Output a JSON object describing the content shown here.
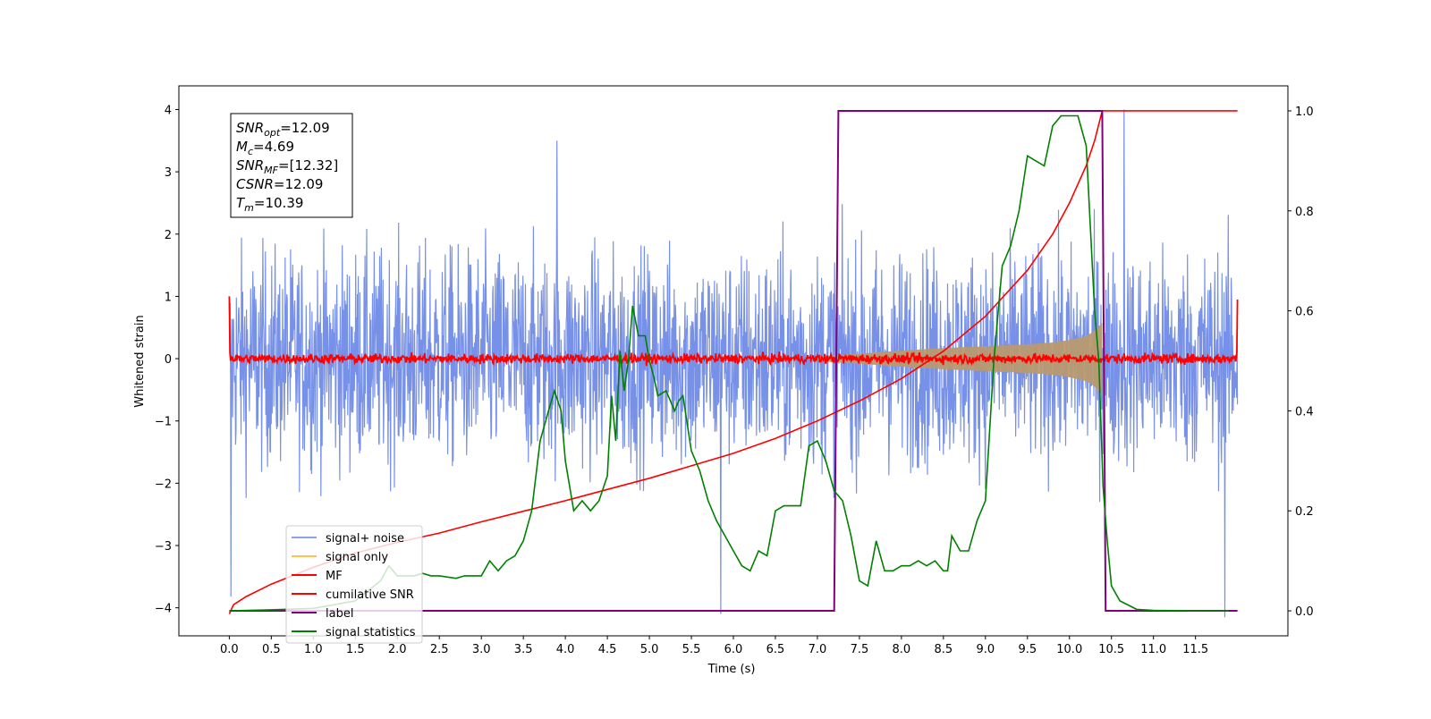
{
  "chart_data": {
    "type": "line",
    "xlabel": "Time (s)",
    "ylabel": "Whitened strain",
    "ylabel_right": "",
    "xlim": [
      -0.6,
      12.6
    ],
    "ylim": [
      -4.45,
      4.38
    ],
    "ylim_right": [
      -0.05,
      1.05
    ],
    "x_ticks": [
      0.0,
      0.5,
      1.0,
      1.5,
      2.0,
      2.5,
      3.0,
      3.5,
      4.0,
      4.5,
      5.0,
      5.5,
      6.0,
      6.5,
      7.0,
      7.5,
      8.0,
      8.5,
      9.0,
      9.5,
      10.0,
      10.5,
      11.0,
      11.5
    ],
    "x_tick_labels": [
      "0.0",
      "0.5",
      "1.0",
      "1.5",
      "2.0",
      "2.5",
      "3.0",
      "3.5",
      "4.0",
      "4.5",
      "5.0",
      "5.5",
      "6.0",
      "6.5",
      "7.0",
      "7.5",
      "8.0",
      "8.5",
      "9.0",
      "9.5",
      "10.0",
      "10.5",
      "11.0",
      "11.5"
    ],
    "y_ticks": [
      4,
      3,
      2,
      1,
      0,
      -1,
      -2,
      -3,
      -4
    ],
    "y_tick_labels": [
      "4",
      "3",
      "2",
      "1",
      "0",
      "−1",
      "−2",
      "−3",
      "−4"
    ],
    "y_ticks_right": [
      1.0,
      0.8,
      0.6,
      0.4,
      0.2,
      0.0
    ],
    "y_tick_labels_right": [
      "1.0",
      "0.8",
      "0.6",
      "0.4",
      "0.2",
      "0.0"
    ],
    "grid": false,
    "legend_placement": "lower-left",
    "annotation": {
      "lines": [
        {
          "base": "SNR",
          "sub": "opt",
          "value": "=12.09"
        },
        {
          "base": "M",
          "sub": "c",
          "value": "=4.69"
        },
        {
          "base": "SNR",
          "sub": "MF",
          "value": "=[12.32]"
        },
        {
          "base": "CSNR",
          "sub": "",
          "value": "=12.09"
        },
        {
          "base": "T",
          "sub": "m",
          "value": "=10.39"
        }
      ]
    },
    "series": [
      {
        "name": "signal+ noise",
        "color": "#7891e8",
        "axis": "left",
        "style": "noise band",
        "x_range": [
          0.0,
          12.0
        ],
        "typical_amplitude": 2.0,
        "max": 3.98,
        "min": -4.15,
        "notable_points": [
          [
            0.02,
            -3.82
          ],
          [
            3.9,
            3.5
          ],
          [
            5.85,
            -4.1
          ],
          [
            10.65,
            4.0
          ],
          [
            11.85,
            -4.15
          ]
        ]
      },
      {
        "name": "signal only",
        "color": "#ffc04d",
        "axis": "left",
        "style": "chirp envelope",
        "envelope_x": [
          7.0,
          7.5,
          8.0,
          8.5,
          9.0,
          9.5,
          9.8,
          10.0,
          10.2,
          10.3,
          10.39
        ],
        "envelope_amplitude": [
          0.04,
          0.08,
          0.13,
          0.17,
          0.2,
          0.23,
          0.26,
          0.3,
          0.36,
          0.45,
          0.58
        ]
      },
      {
        "name": "MF",
        "color": "#ff0000",
        "axis": "left",
        "style": "noisy trace near zero",
        "x_range": [
          0.0,
          12.0
        ],
        "typical_amplitude": 0.12,
        "edge_values": [
          [
            0.0,
            1.0
          ],
          [
            12.0,
            0.95
          ]
        ]
      },
      {
        "name": "cumilative SNR",
        "color": "#ff0000",
        "axis": "left",
        "x": [
          0.0,
          0.05,
          0.2,
          0.5,
          1.0,
          1.5,
          2.0,
          2.5,
          3.0,
          3.5,
          4.0,
          4.5,
          5.0,
          5.5,
          6.0,
          6.5,
          7.0,
          7.5,
          8.0,
          8.5,
          9.0,
          9.5,
          9.8,
          10.0,
          10.2,
          10.3,
          10.39,
          10.5,
          11.0,
          11.5,
          12.0
        ],
        "y": [
          -4.1,
          -3.95,
          -3.82,
          -3.62,
          -3.35,
          -3.12,
          -2.95,
          -2.8,
          -2.62,
          -2.45,
          -2.28,
          -2.1,
          -1.92,
          -1.72,
          -1.52,
          -1.28,
          -1.0,
          -0.68,
          -0.32,
          0.12,
          0.68,
          1.42,
          2.0,
          2.5,
          3.1,
          3.5,
          3.98,
          3.98,
          3.98,
          3.98,
          3.98
        ]
      },
      {
        "name": "label",
        "color": "#800080",
        "axis": "right",
        "x": [
          0.0,
          7.2,
          7.25,
          10.39,
          10.43,
          12.0
        ],
        "y": [
          0.0,
          0.0,
          1.0,
          1.0,
          0.0,
          0.0
        ]
      },
      {
        "name": "signal statistics",
        "color": "#008000",
        "axis": "right",
        "x": [
          0.0,
          0.5,
          1.0,
          1.5,
          1.8,
          1.9,
          2.0,
          2.2,
          2.3,
          2.4,
          2.5,
          2.7,
          2.8,
          3.0,
          3.1,
          3.2,
          3.3,
          3.4,
          3.5,
          3.6,
          3.7,
          3.8,
          3.87,
          3.95,
          4.0,
          4.1,
          4.2,
          4.3,
          4.4,
          4.5,
          4.55,
          4.6,
          4.65,
          4.7,
          4.75,
          4.8,
          4.87,
          4.95,
          5.0,
          5.05,
          5.1,
          5.2,
          5.3,
          5.35,
          5.4,
          5.5,
          5.6,
          5.7,
          5.8,
          6.0,
          6.1,
          6.2,
          6.3,
          6.4,
          6.5,
          6.6,
          6.8,
          6.9,
          7.0,
          7.1,
          7.2,
          7.3,
          7.4,
          7.5,
          7.6,
          7.7,
          7.8,
          7.9,
          8.0,
          8.1,
          8.2,
          8.3,
          8.4,
          8.5,
          8.55,
          8.6,
          8.7,
          8.8,
          8.9,
          9.0,
          9.1,
          9.2,
          9.3,
          9.4,
          9.5,
          9.6,
          9.7,
          9.8,
          9.9,
          10.0,
          10.1,
          10.2,
          10.3,
          10.35,
          10.4,
          10.45,
          10.5,
          10.6,
          10.8,
          11.0,
          11.5,
          11.9
        ],
        "y": [
          0.0,
          0.002,
          0.005,
          0.02,
          0.06,
          0.09,
          0.07,
          0.07,
          0.075,
          0.07,
          0.07,
          0.065,
          0.07,
          0.07,
          0.1,
          0.08,
          0.1,
          0.11,
          0.14,
          0.2,
          0.34,
          0.4,
          0.44,
          0.4,
          0.3,
          0.2,
          0.22,
          0.2,
          0.22,
          0.27,
          0.43,
          0.34,
          0.52,
          0.44,
          0.5,
          0.61,
          0.55,
          0.55,
          0.5,
          0.47,
          0.43,
          0.44,
          0.4,
          0.42,
          0.43,
          0.32,
          0.28,
          0.22,
          0.18,
          0.12,
          0.09,
          0.08,
          0.12,
          0.11,
          0.2,
          0.21,
          0.21,
          0.33,
          0.34,
          0.3,
          0.24,
          0.22,
          0.15,
          0.06,
          0.05,
          0.14,
          0.08,
          0.08,
          0.09,
          0.09,
          0.1,
          0.09,
          0.1,
          0.08,
          0.08,
          0.15,
          0.12,
          0.12,
          0.18,
          0.22,
          0.5,
          0.69,
          0.73,
          0.8,
          0.91,
          0.9,
          0.89,
          0.97,
          0.99,
          0.99,
          0.99,
          0.93,
          0.6,
          0.5,
          0.25,
          0.14,
          0.05,
          0.02,
          0.003,
          0.001,
          0.0,
          0.0
        ]
      }
    ]
  }
}
